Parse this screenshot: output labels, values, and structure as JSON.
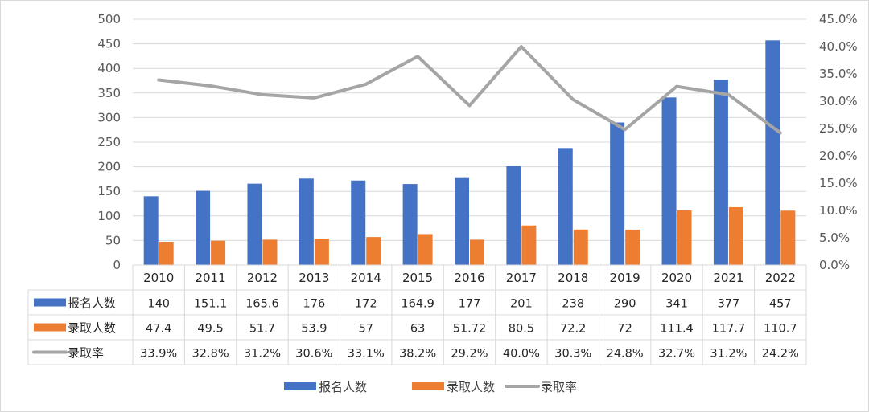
{
  "chart_data": {
    "type": "bar",
    "categories": [
      "2010",
      "2011",
      "2012",
      "2013",
      "2014",
      "2015",
      "2016",
      "2017",
      "2018",
      "2019",
      "2020",
      "2021",
      "2022"
    ],
    "series": [
      {
        "name": "报名人数",
        "type": "bar",
        "axis": "left",
        "color": "#4472C4",
        "values": [
          140,
          151.1,
          165.6,
          176,
          172,
          164.9,
          177,
          201,
          238,
          290,
          341,
          377,
          457
        ],
        "labels": [
          "140",
          "151.1",
          "165.6",
          "176",
          "172",
          "164.9",
          "177",
          "201",
          "238",
          "290",
          "341",
          "377",
          "457"
        ]
      },
      {
        "name": "录取人数",
        "type": "bar",
        "axis": "left",
        "color": "#ED7D31",
        "values": [
          47.4,
          49.5,
          51.7,
          53.9,
          57,
          63,
          51.72,
          80.5,
          72.2,
          72,
          111.4,
          117.7,
          110.7
        ],
        "labels": [
          "47.4",
          "49.5",
          "51.7",
          "53.9",
          "57",
          "63",
          "51.72",
          "80.5",
          "72.2",
          "72",
          "111.4",
          "117.7",
          "110.7"
        ]
      },
      {
        "name": "录取率",
        "type": "line",
        "axis": "right",
        "color": "#A5A5A5",
        "values": [
          33.9,
          32.8,
          31.2,
          30.6,
          33.1,
          38.2,
          29.2,
          40.0,
          30.3,
          24.8,
          32.7,
          31.2,
          24.2
        ],
        "labels": [
          "33.9%",
          "32.8%",
          "31.2%",
          "30.6%",
          "33.1%",
          "38.2%",
          "29.2%",
          "40.0%",
          "30.3%",
          "24.8%",
          "32.7%",
          "31.2%",
          "24.2%"
        ]
      }
    ],
    "y_left": {
      "min": 0,
      "max": 500,
      "step": 50,
      "ticks": [
        "0",
        "50",
        "100",
        "150",
        "200",
        "250",
        "300",
        "350",
        "400",
        "450",
        "500"
      ]
    },
    "y_right": {
      "min": 0,
      "max": 45,
      "step": 5,
      "ticks": [
        "0.0%",
        "5.0%",
        "10.0%",
        "15.0%",
        "20.0%",
        "25.0%",
        "30.0%",
        "35.0%",
        "40.0%",
        "45.0%"
      ]
    },
    "grid": true,
    "data_table": true,
    "legend": {
      "position": "bottom"
    }
  }
}
